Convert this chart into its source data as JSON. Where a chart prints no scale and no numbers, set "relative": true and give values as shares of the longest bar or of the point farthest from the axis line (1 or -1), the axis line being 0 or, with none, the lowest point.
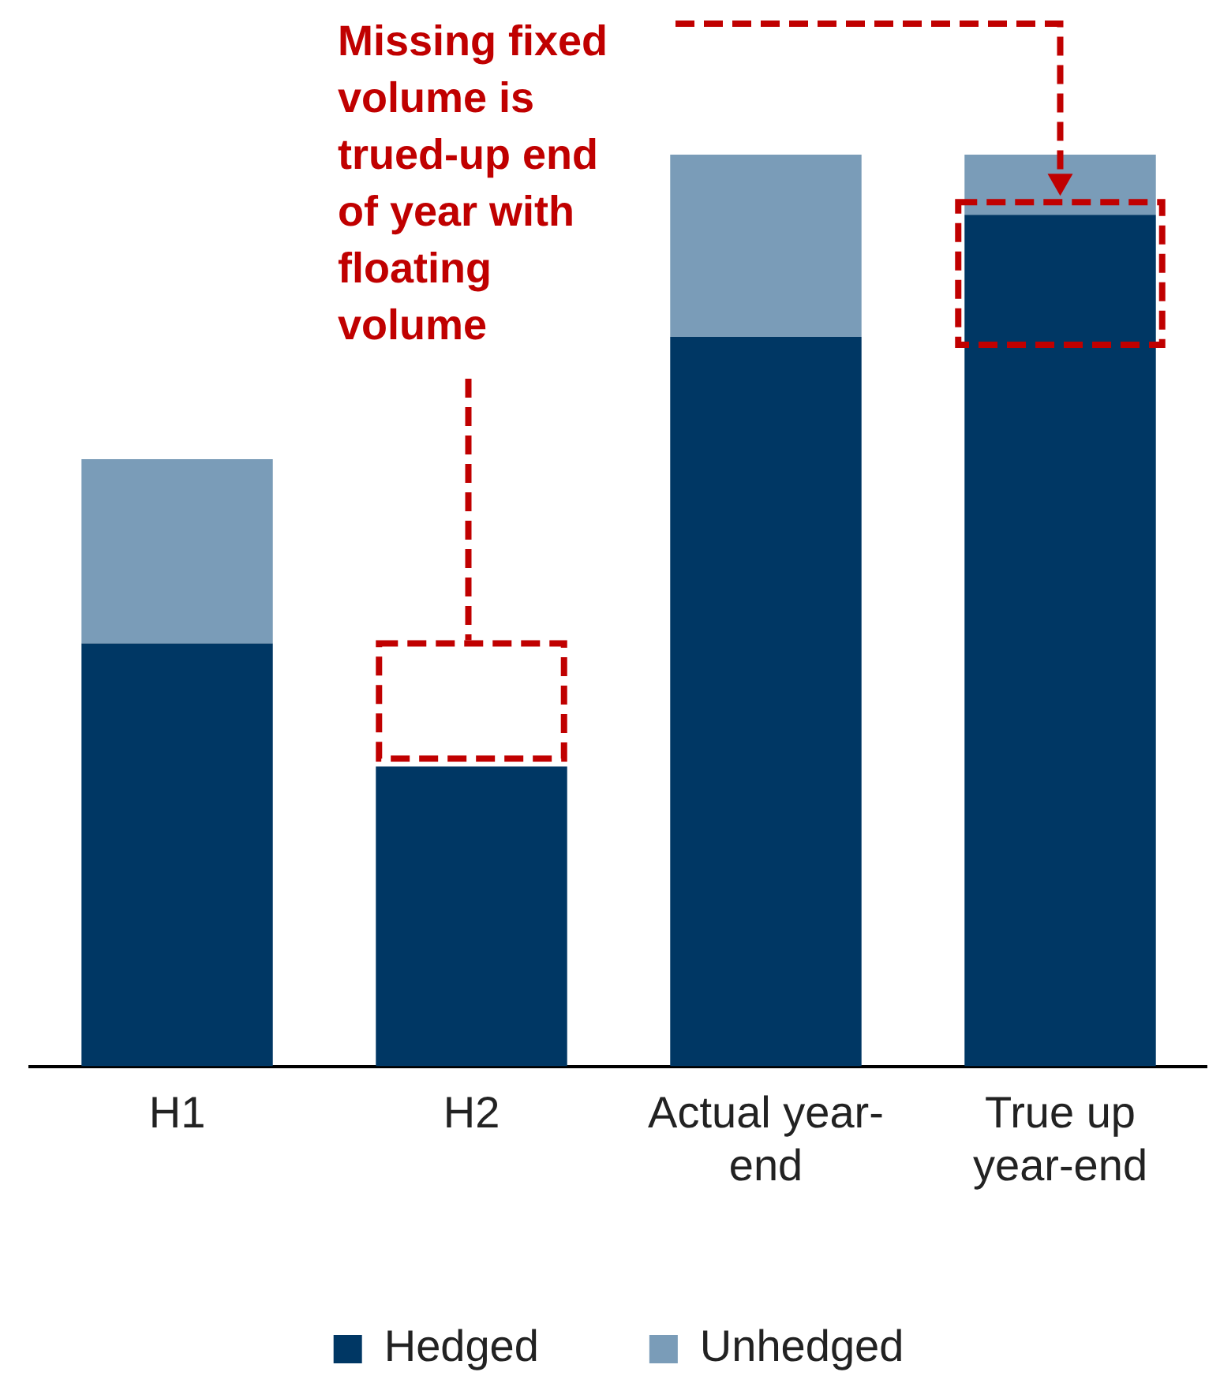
{
  "chart_data": {
    "type": "bar",
    "stacked": true,
    "relative": true,
    "categories": [
      "H1",
      "H2",
      "Actual year-end",
      "True up year-end"
    ],
    "series": [
      {
        "name": "Hedged",
        "color": "#003764",
        "values": [
          0.464,
          0.329,
          0.8,
          0.934
        ]
      },
      {
        "name": "Unhedged",
        "color": "#7a9cb8",
        "values": [
          0.202,
          null,
          0.2,
          0.066
        ]
      }
    ],
    "annotations": [
      "Missing fixed volume is trued-up end of year with floating volume"
    ],
    "legend": "bottom",
    "grid": false
  }
}
